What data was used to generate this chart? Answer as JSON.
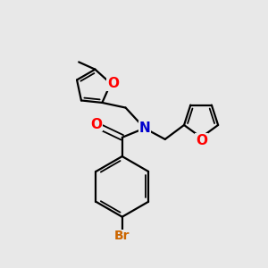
{
  "bg_color": "#e8e8e8",
  "bond_color": "#000000",
  "atom_colors": {
    "O": "#ff0000",
    "N": "#0000cd",
    "Br": "#cc6600",
    "C": "#000000"
  },
  "lw": 1.6,
  "lw_inner": 1.3
}
